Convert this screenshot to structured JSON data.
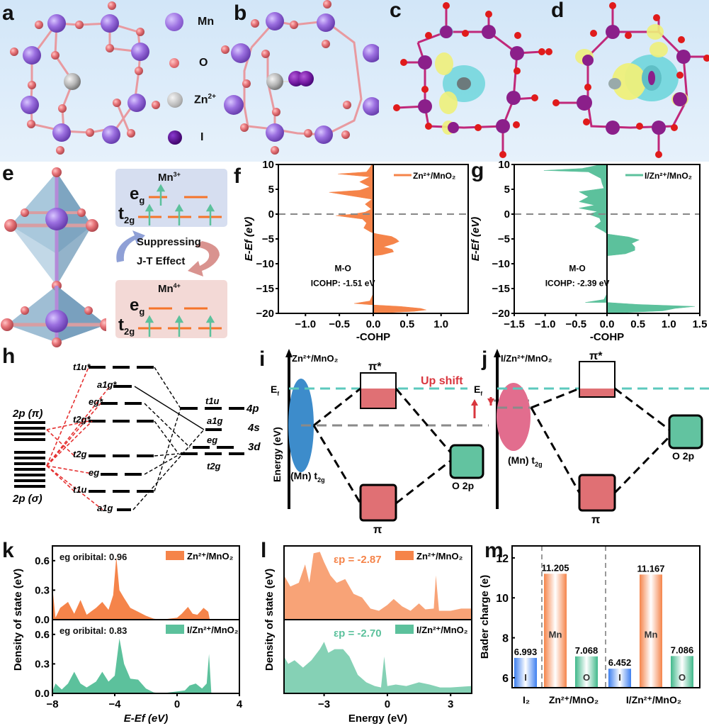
{
  "panel_labels": [
    "a",
    "b",
    "c",
    "d",
    "e",
    "f",
    "g",
    "h",
    "i",
    "j",
    "k",
    "l",
    "m"
  ],
  "legend_atoms": {
    "items": [
      {
        "label": "Mn",
        "color": "#9b6fe0"
      },
      {
        "label": "O",
        "color": "#e8757a"
      },
      {
        "label": "Zn",
        "sup": "2+",
        "color": "#b5b5b5"
      },
      {
        "label": "I",
        "color": "#4a0a7a"
      }
    ]
  },
  "colors": {
    "zn_mno2": "#f5844a",
    "i_zn_mno2": "#5cc19c",
    "mn": "#9b6fe0",
    "o": "#e8757a",
    "zn": "#b5b5b5",
    "i": "#7a1fa8",
    "charge_yellow": "#eef07a",
    "charge_cyan": "#6fd6dc",
    "fermi_line": "#5cc9bd",
    "arrow_red": "#d9363e",
    "pi_box": "#e07074",
    "o2p_box": "#62c3a0",
    "mn3_bg": "#d6def0",
    "mn4_bg": "#f3d9d6"
  },
  "panel_e": {
    "mn3": {
      "title": "Mn",
      "sup": "3+",
      "eg": "e",
      "eg_sub": "g",
      "t2g": "t",
      "t2g_sub": "2g"
    },
    "mn4": {
      "title": "Mn",
      "sup": "4+",
      "eg": "e",
      "eg_sub": "g",
      "t2g": "t",
      "t2g_sub": "2g"
    },
    "caption_line1": "Suppressing",
    "caption_line2": "J-T Effect"
  },
  "panel_h": {
    "left_top": "2p (π)",
    "left_bottom": "2p (σ)",
    "mo_levels": [
      "t1u*",
      "a1g*",
      "eg*",
      "t2g*",
      "t2g",
      "eg",
      "t1u",
      "a1g"
    ],
    "right_levels": [
      {
        "sym": "t1u",
        "orb": "4p"
      },
      {
        "sym": "a1g",
        "orb": "4s"
      },
      {
        "sym": "eg",
        "orb": "3d"
      },
      {
        "sym": "t2g",
        "orb": ""
      }
    ]
  },
  "panel_i": {
    "title": "Zn²⁺/MnO₂",
    "ylabel": "Energy (eV)",
    "ef": "E",
    "ef_sub": "f",
    "pi_star": "π*",
    "pi": "π",
    "mn_t2g": "(Mn) t",
    "mn_t2g_sub": "2g",
    "o2p": "O 2p",
    "up_shift": "Up shift"
  },
  "panel_j": {
    "title": "I/Zn²⁺/MnO₂",
    "ef": "E",
    "ef_sub": "f",
    "pi_star": "π*",
    "pi": "π",
    "mn_t2g": "(Mn) t",
    "mn_t2g_sub": "2g",
    "o2p": "O 2p"
  },
  "chart_data": [
    {
      "id": "f",
      "type": "area",
      "orientation": "horizontal",
      "title": "",
      "xlabel": "-COHP",
      "ylabel": "E-Ef (eV)",
      "xlim": [
        -1.4,
        1.4
      ],
      "ylim": [
        -20,
        10
      ],
      "xticks": [
        "-1.0",
        "-0.5",
        "0.0",
        "0.5",
        "1.0"
      ],
      "yticks": [
        "10",
        "5",
        "0",
        "-5",
        "-10",
        "-15",
        "-20"
      ],
      "legend": "Zn²⁺/MnO₂",
      "annotation": [
        "M-O",
        "ICOHP: -1.51 eV"
      ],
      "series": [
        {
          "name": "Zn²⁺/MnO₂",
          "points": [
            [
              -20,
              0
            ],
            [
              -19.6,
              0.6
            ],
            [
              -19.3,
              0.78
            ],
            [
              -19,
              0.7
            ],
            [
              -18.6,
              0.4
            ],
            [
              -18.3,
              0
            ],
            [
              -18,
              -0.28
            ],
            [
              -17.5,
              -0.05
            ],
            [
              -16,
              0
            ],
            [
              -8.4,
              0
            ],
            [
              -8.2,
              0.13
            ],
            [
              -7.6,
              0.3
            ],
            [
              -7.1,
              0.28
            ],
            [
              -6.6,
              0.15
            ],
            [
              -6,
              0.3
            ],
            [
              -5.5,
              0.38
            ],
            [
              -5,
              0.34
            ],
            [
              -4.5,
              0.27
            ],
            [
              -4,
              0.06
            ],
            [
              -3.8,
              0
            ],
            [
              -3.6,
              -0.04
            ],
            [
              -2.8,
              -0.14
            ],
            [
              -1.8,
              -0.1
            ],
            [
              -1,
              -0.16
            ],
            [
              -0.3,
              -0.55
            ],
            [
              0,
              -0.3
            ],
            [
              0.4,
              -0.12
            ],
            [
              1,
              -0.03
            ],
            [
              2,
              -0.12
            ],
            [
              3,
              -0.02
            ],
            [
              4.4,
              -0.65
            ],
            [
              4.8,
              -0.2
            ],
            [
              5.5,
              -0.05
            ],
            [
              6.5,
              -0.2
            ],
            [
              7.5,
              -0.05
            ],
            [
              8.1,
              -0.52
            ],
            [
              8.5,
              -0.1
            ],
            [
              9.2,
              -0.06
            ],
            [
              10,
              -0.02
            ]
          ]
        }
      ]
    },
    {
      "id": "g",
      "type": "area",
      "orientation": "horizontal",
      "title": "",
      "xlabel": "-COHP",
      "ylabel": "E-Ef (eV)",
      "xlim": [
        -1.5,
        1.5
      ],
      "ylim": [
        -20,
        10
      ],
      "xticks": [
        "-1.5",
        "-1.0",
        "-0.5",
        "0.0",
        "0.5",
        "1.0",
        "1.5"
      ],
      "yticks": [
        "10",
        "5",
        "0",
        "-5",
        "-10",
        "-15",
        "-20"
      ],
      "legend": "I/Zn²⁺/MnO₂",
      "annotation": [
        "M-O",
        "ICOHP: -2.39 eV"
      ],
      "series": [
        {
          "name": "I/Zn²⁺/MnO₂",
          "points": [
            [
              -20,
              0
            ],
            [
              -19.5,
              0.9
            ],
            [
              -19,
              1.1
            ],
            [
              -18.6,
              1.42
            ],
            [
              -18.2,
              0.5
            ],
            [
              -17.8,
              0
            ],
            [
              -17.8,
              -0.35
            ],
            [
              -17.2,
              -0.05
            ],
            [
              -16,
              0
            ],
            [
              -8.4,
              0
            ],
            [
              -8,
              0.3
            ],
            [
              -7.3,
              0.45
            ],
            [
              -6.6,
              0.45
            ],
            [
              -5.9,
              0.4
            ],
            [
              -5.2,
              0.52
            ],
            [
              -4.6,
              0.35
            ],
            [
              -4,
              0
            ],
            [
              -3.5,
              -0.05
            ],
            [
              -2.5,
              -0.2
            ],
            [
              -1.5,
              -0.1
            ],
            [
              -0.8,
              -0.12
            ],
            [
              0,
              -0.3
            ],
            [
              0.5,
              -0.15
            ],
            [
              1.2,
              -0.45
            ],
            [
              1.8,
              -0.2
            ],
            [
              2.5,
              -0.45
            ],
            [
              3.5,
              -0.3
            ],
            [
              4.5,
              -0.45
            ],
            [
              5.2,
              -0.05
            ],
            [
              6.2,
              -0.08
            ],
            [
              7.2,
              -0.1
            ],
            [
              8.5,
              -0.3
            ],
            [
              8.8,
              -1.02
            ],
            [
              9.2,
              -0.4
            ],
            [
              10,
              -0.1
            ]
          ]
        }
      ]
    },
    {
      "id": "k",
      "type": "area",
      "title": "",
      "xlabel": "E-Ef (eV)",
      "ylabel": "Density of state (eV)",
      "xlim": [
        -8,
        4
      ],
      "ylim": [
        0,
        0.75
      ],
      "xticks": [
        "-8",
        "-4",
        "0",
        "4"
      ],
      "yticks": [
        "0.0",
        "0.3",
        "0.6"
      ],
      "subplots": [
        {
          "legend": "Zn²⁺/MnO₂",
          "annotation": "eg oribital: 0.96",
          "points": [
            [
              -8,
              0.33
            ],
            [
              -7.8,
              0.02
            ],
            [
              -7.5,
              0.12
            ],
            [
              -7,
              0.18
            ],
            [
              -6.6,
              0.06
            ],
            [
              -6.2,
              0.2
            ],
            [
              -5.8,
              0.05
            ],
            [
              -5.2,
              0.12
            ],
            [
              -4.8,
              0.18
            ],
            [
              -4.4,
              0.1
            ],
            [
              -4.1,
              0.25
            ],
            [
              -3.9,
              0.64
            ],
            [
              -3.7,
              0.3
            ],
            [
              -3.4,
              0.22
            ],
            [
              -3,
              0.12
            ],
            [
              -2.5,
              0.08
            ],
            [
              -2,
              0.04
            ],
            [
              -1.5,
              0.01
            ],
            [
              -1,
              0
            ],
            [
              0,
              0.02
            ],
            [
              0.3,
              0.06
            ],
            [
              0.7,
              0.13
            ],
            [
              1,
              0.06
            ],
            [
              1.3,
              0.05
            ],
            [
              1.7,
              0.12
            ],
            [
              2,
              0.08
            ],
            [
              2.1,
              0
            ]
          ]
        },
        {
          "legend": "I/Zn²⁺/MnO₂",
          "annotation": "eg oribital: 0.83",
          "points": [
            [
              -8,
              0.02
            ],
            [
              -7.8,
              0.1
            ],
            [
              -7.4,
              0.04
            ],
            [
              -7,
              0.1
            ],
            [
              -6.6,
              0.22
            ],
            [
              -6.2,
              0.1
            ],
            [
              -5.8,
              0.06
            ],
            [
              -5.2,
              0.12
            ],
            [
              -4.8,
              0.22
            ],
            [
              -4.4,
              0.12
            ],
            [
              -4,
              0.18
            ],
            [
              -3.7,
              0.56
            ],
            [
              -3.4,
              0.3
            ],
            [
              -3,
              0.15
            ],
            [
              -2.5,
              0.14
            ],
            [
              -2,
              0.05
            ],
            [
              -1.5,
              0.01
            ],
            [
              -1,
              0
            ],
            [
              0,
              0.02
            ],
            [
              0.5,
              0.03
            ],
            [
              0.8,
              0.08
            ],
            [
              1.2,
              0.1
            ],
            [
              1.6,
              0.05
            ],
            [
              1.9,
              0.1
            ],
            [
              2.05,
              0.4
            ],
            [
              2.2,
              0
            ]
          ]
        }
      ]
    },
    {
      "id": "l",
      "type": "area",
      "title": "",
      "xlabel": "Energy (eV)",
      "ylabel": "Density of state (eV)",
      "xlim": [
        -4.9,
        4
      ],
      "ylim": [
        0,
        1
      ],
      "xticks": [
        "-3",
        "0",
        "3"
      ],
      "subplots": [
        {
          "legend": "Zn²⁺/MnO₂",
          "annotation": "εp = -2.87",
          "points": [
            [
              -4.9,
              0.6
            ],
            [
              -4.6,
              0.45
            ],
            [
              -4.2,
              0.5
            ],
            [
              -3.9,
              0.75
            ],
            [
              -3.7,
              0.5
            ],
            [
              -3.5,
              0.9
            ],
            [
              -3.2,
              0.92
            ],
            [
              -3,
              0.78
            ],
            [
              -2.7,
              0.6
            ],
            [
              -2.4,
              0.5
            ],
            [
              -2,
              0.55
            ],
            [
              -1.6,
              0.35
            ],
            [
              -1.2,
              0.3
            ],
            [
              -0.8,
              0.15
            ],
            [
              -0.4,
              0.12
            ],
            [
              0,
              0.2
            ],
            [
              0.3,
              0.28
            ],
            [
              0.7,
              0.18
            ],
            [
              1.1,
              0.12
            ],
            [
              1.5,
              0.22
            ],
            [
              1.8,
              0.14
            ],
            [
              2.2,
              0.15
            ],
            [
              2.3,
              0.6
            ],
            [
              2.45,
              0.12
            ],
            [
              3,
              0.12
            ],
            [
              3.5,
              0.15
            ],
            [
              4,
              0.15
            ]
          ]
        },
        {
          "legend": "I/Zn²⁺/MnO₂",
          "annotation": "εp = -2.70",
          "points": [
            [
              -4.9,
              0.5
            ],
            [
              -4.7,
              0.4
            ],
            [
              -4.4,
              0.45
            ],
            [
              -4,
              0.35
            ],
            [
              -3.6,
              0.45
            ],
            [
              -3.2,
              0.6
            ],
            [
              -3,
              0.7
            ],
            [
              -2.8,
              0.55
            ],
            [
              -2.5,
              0.6
            ],
            [
              -2.1,
              0.6
            ],
            [
              -1.8,
              0.5
            ],
            [
              -1.4,
              0.25
            ],
            [
              -1,
              0.15
            ],
            [
              -0.6,
              0.1
            ],
            [
              -0.3,
              0.08
            ],
            [
              -0.15,
              0.5
            ],
            [
              0,
              0.1
            ],
            [
              0.4,
              0.12
            ],
            [
              0.9,
              0.1
            ],
            [
              1.5,
              0.15
            ],
            [
              2,
              0.12
            ],
            [
              2.5,
              0.08
            ],
            [
              3,
              0.08
            ],
            [
              4,
              0.1
            ]
          ]
        }
      ]
    },
    {
      "id": "m",
      "type": "bar",
      "title": "",
      "xlabel": "",
      "ylabel": "Bader charge (e)",
      "ylim": [
        5.5,
        12.6
      ],
      "yticks": [
        "6",
        "8",
        "10",
        "12"
      ],
      "groups": [
        "I₂",
        "Zn²⁺/MnO₂",
        "I/Zn²⁺/MnO₂"
      ],
      "bars": [
        {
          "group": 0,
          "label": "I",
          "value": 6.993,
          "value_label": "6.993",
          "color": "#3d7ff0"
        },
        {
          "group": 1,
          "label": "Mn",
          "value": 11.205,
          "value_label": "11.205",
          "color": "#f5844a"
        },
        {
          "group": 1,
          "label": "O",
          "value": 7.068,
          "value_label": "7.068",
          "color": "#3fb88a"
        },
        {
          "group": 2,
          "label": "I",
          "value": 6.452,
          "value_label": "6.452",
          "color": "#3d7ff0"
        },
        {
          "group": 2,
          "label": "Mn",
          "value": 11.167,
          "value_label": "11.167",
          "color": "#f5844a"
        },
        {
          "group": 2,
          "label": "O",
          "value": 7.086,
          "value_label": "7.086",
          "color": "#3fb88a"
        }
      ]
    }
  ]
}
